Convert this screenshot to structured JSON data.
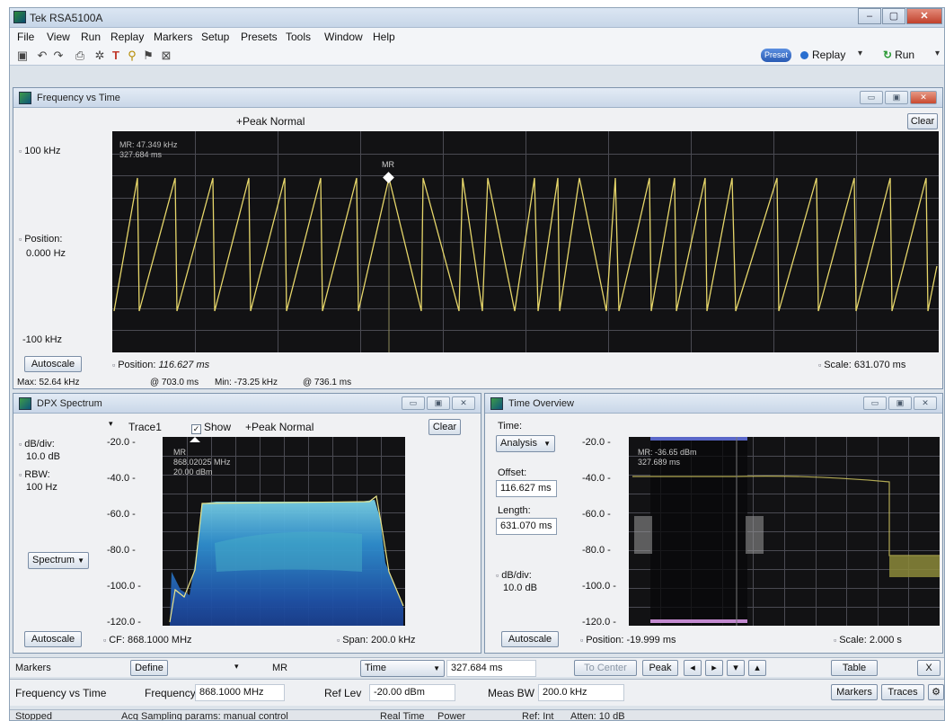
{
  "app": {
    "title": "Tek RSA5100A",
    "window_controls": [
      "–",
      "▢",
      "✕"
    ]
  },
  "menu": [
    "File",
    "View",
    "Run",
    "Replay",
    "Markers",
    "Setup",
    "Presets",
    "Tools",
    "Window",
    "Help"
  ],
  "toolbar": {
    "preset_label": "Preset",
    "replay_label": "Replay",
    "run_label": "Run"
  },
  "panels": {
    "freq_time": {
      "title": "Frequency vs Time",
      "trace_label": "+Peak Normal",
      "clear_label": "Clear",
      "y_top": "100 kHz",
      "position_label": "Position:",
      "position_value": "0.000 Hz",
      "y_bottom": "-100 kHz",
      "marker_readout_freq": "MR: 47.349 kHz",
      "marker_readout_time": "327.684 ms",
      "marker_label": "MR",
      "autoscale_label": "Autoscale",
      "x_position_label": "Position:",
      "x_position_value": "116.627 ms",
      "scale_label": "Scale: 631.070 ms",
      "stats": {
        "max": "Max:  52.64 kHz",
        "max_at": "@ 703.0 ms",
        "min": "Min:  -73.25 kHz",
        "min_at": "@ 736.1 ms"
      }
    },
    "dpx": {
      "title": "DPX Spectrum",
      "trace_name": "Trace1",
      "show_label": "Show",
      "trace_label": "+Peak Normal",
      "clear_label": "Clear",
      "db_div_label": "dB/div:",
      "db_div_value": "10.0 dB",
      "rbw_label": "RBW:",
      "rbw_value": "100 Hz",
      "spectrum_select": "Spectrum",
      "autoscale_label": "Autoscale",
      "cf_label": "CF: 868.1000 MHz",
      "span_label": "Span: 200.0 kHz",
      "y_ticks": [
        "-20.0",
        "-40.0",
        "-60.0",
        "-80.0",
        "-100.0",
        "-120.0"
      ],
      "marker_label": "MR",
      "marker_freq": "868.02025 MHz",
      "marker_level": "20.00 dBm"
    },
    "time_overview": {
      "title": "Time Overview",
      "time_label": "Time:",
      "analysis_select": "Analysis",
      "offset_label": "Offset:",
      "offset_value": "116.627 ms",
      "length_label": "Length:",
      "length_value": "631.070 ms",
      "db_div_label": "dB/div:",
      "db_div_value": "10.0 dB",
      "autoscale_label": "Autoscale",
      "position_label": "Position: -19.999 ms",
      "scale_label": "Scale: 2.000 s",
      "y_ticks": [
        "-20.0",
        "-40.0",
        "-60.0",
        "-80.0",
        "-100.0",
        "-120.0"
      ],
      "marker_readout_level": "MR: -36.65 dBm",
      "marker_readout_time": "327.689 ms"
    }
  },
  "markers_bar": {
    "markers_label": "Markers",
    "define_label": "Define",
    "mr_select": "MR",
    "time_select": "Time",
    "time_value": "327.684 ms",
    "to_center": "To Center",
    "peak": "Peak",
    "table": "Table",
    "close": "X"
  },
  "settings_bar": {
    "measurement": "Frequency vs Time",
    "frequency_label": "Frequency",
    "frequency_value": "868.1000 MHz",
    "ref_lev_label": "Ref Lev",
    "ref_lev_value": "-20.00 dBm",
    "meas_bw_label": "Meas BW",
    "meas_bw_value": "200.0 kHz",
    "markers_btn": "Markers",
    "traces_btn": "Traces"
  },
  "status": {
    "state": "Stopped",
    "acq": "Acq Sampling params: manual control",
    "realtime": "Real Time",
    "power": "Power",
    "ref": "Ref: Int",
    "atten": "Atten: 10 dB"
  },
  "colors": {
    "trace_yellow": "#e6d66a",
    "plot_bg": "#121214",
    "marker_white": "#ffffff"
  }
}
